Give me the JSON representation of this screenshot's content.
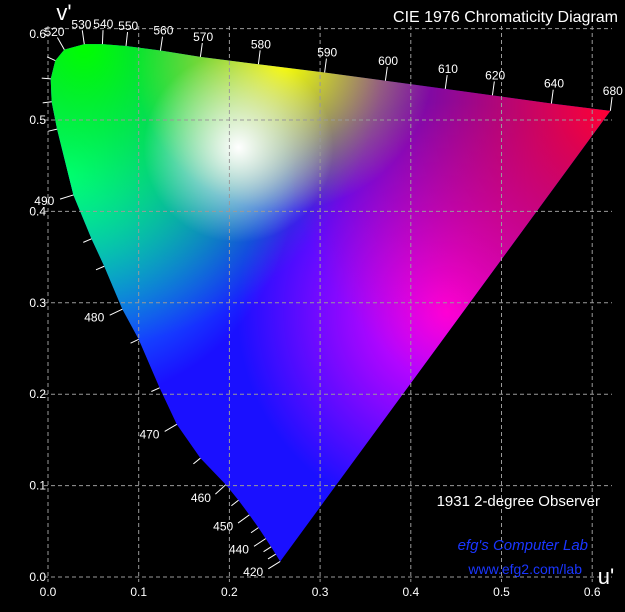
{
  "chart_data": {
    "type": "scatter",
    "title": "CIE 1976 Chromaticity Diagram",
    "xlabel": "u'",
    "ylabel": "v'",
    "xlim": [
      0,
      0.62
    ],
    "ylim": [
      0,
      0.6
    ],
    "x_ticks": [
      "0.0",
      "0.1",
      "0.2",
      "0.3",
      "0.4",
      "0.5",
      "0.6"
    ],
    "y_ticks": [
      "0.0",
      "0.1",
      "0.2",
      "0.3",
      "0.4",
      "0.5",
      "0.6"
    ],
    "grid": true,
    "white_point": {
      "u": 0.21,
      "v": 0.47
    },
    "spectral_locus": [
      {
        "nm": "420",
        "u": 0.256,
        "v": 0.017,
        "labeled": true
      },
      {
        "nm": "",
        "u": 0.251,
        "v": 0.025,
        "labeled": false
      },
      {
        "nm": "",
        "u": 0.246,
        "v": 0.033,
        "labeled": false
      },
      {
        "nm": "440",
        "u": 0.24,
        "v": 0.042,
        "labeled": true
      },
      {
        "nm": "",
        "u": 0.232,
        "v": 0.054,
        "labeled": false
      },
      {
        "nm": "450",
        "u": 0.222,
        "v": 0.068,
        "labeled": true
      },
      {
        "nm": "",
        "u": 0.21,
        "v": 0.084,
        "labeled": false
      },
      {
        "nm": "460",
        "u": 0.196,
        "v": 0.101,
        "labeled": true
      },
      {
        "nm": "",
        "u": 0.168,
        "v": 0.13,
        "labeled": false
      },
      {
        "nm": "470",
        "u": 0.142,
        "v": 0.167,
        "labeled": true
      },
      {
        "nm": "",
        "u": 0.123,
        "v": 0.207,
        "labeled": false
      },
      {
        "nm": "",
        "u": 0.1,
        "v": 0.26,
        "labeled": false
      },
      {
        "nm": "480",
        "u": 0.082,
        "v": 0.293,
        "labeled": true
      },
      {
        "nm": "",
        "u": 0.062,
        "v": 0.34,
        "labeled": false
      },
      {
        "nm": "",
        "u": 0.048,
        "v": 0.37,
        "labeled": false
      },
      {
        "nm": "490",
        "u": 0.028,
        "v": 0.418,
        "labeled": true
      },
      {
        "nm": "",
        "u": 0.01,
        "v": 0.49,
        "labeled": false
      },
      {
        "nm": "",
        "u": 0.004,
        "v": 0.52,
        "labeled": false
      },
      {
        "nm": "",
        "u": 0.003,
        "v": 0.545,
        "labeled": false
      },
      {
        "nm": "",
        "u": 0.008,
        "v": 0.565,
        "labeled": false
      },
      {
        "nm": "520",
        "u": 0.018,
        "v": 0.577,
        "labeled": true
      },
      {
        "nm": "530",
        "u": 0.04,
        "v": 0.583,
        "labeled": true
      },
      {
        "nm": "540",
        "u": 0.06,
        "v": 0.583,
        "labeled": true
      },
      {
        "nm": "550",
        "u": 0.086,
        "v": 0.581,
        "labeled": true
      },
      {
        "nm": "560",
        "u": 0.124,
        "v": 0.576,
        "labeled": true
      },
      {
        "nm": "570",
        "u": 0.168,
        "v": 0.569,
        "labeled": true
      },
      {
        "nm": "580",
        "u": 0.232,
        "v": 0.561,
        "labeled": true
      },
      {
        "nm": "590",
        "u": 0.305,
        "v": 0.552,
        "labeled": true
      },
      {
        "nm": "600",
        "u": 0.372,
        "v": 0.543,
        "labeled": true
      },
      {
        "nm": "610",
        "u": 0.438,
        "v": 0.534,
        "labeled": true
      },
      {
        "nm": "620",
        "u": 0.49,
        "v": 0.527,
        "labeled": true
      },
      {
        "nm": "640",
        "u": 0.555,
        "v": 0.518,
        "labeled": true
      },
      {
        "nm": "680",
        "u": 0.62,
        "v": 0.51,
        "labeled": true
      }
    ],
    "annotations": {
      "observer": "1931 2-degree Observer",
      "credit": "efg's Computer Lab",
      "url": "www.efg2.com/lab"
    }
  },
  "colors": {
    "background": "#000000",
    "grid": "#9a9a9a",
    "text": "#ffffff",
    "credit": "#1a36ff"
  }
}
